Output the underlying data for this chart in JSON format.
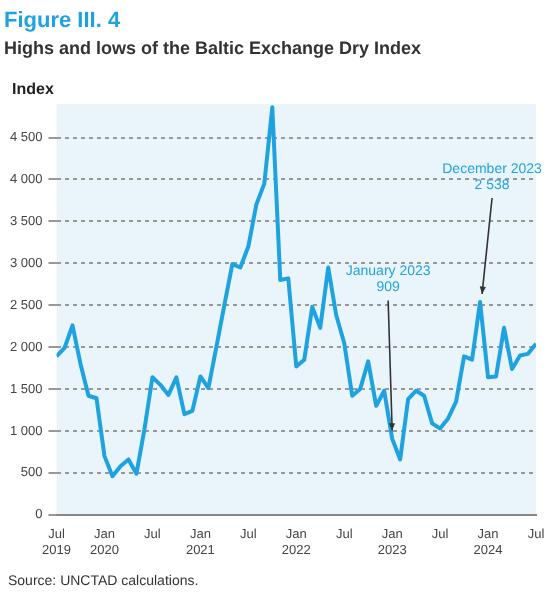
{
  "chart_data": {
    "type": "line",
    "title": "Figure III. 4",
    "subtitle": "Highs and lows of the Baltic Exchange Dry Index",
    "ylabel": "Index",
    "x": [
      "2019-07",
      "2019-08",
      "2019-09",
      "2019-10",
      "2019-11",
      "2019-12",
      "2020-01",
      "2020-02",
      "2020-03",
      "2020-04",
      "2020-05",
      "2020-06",
      "2020-07",
      "2020-08",
      "2020-09",
      "2020-10",
      "2020-11",
      "2020-12",
      "2021-01",
      "2021-02",
      "2021-03",
      "2021-04",
      "2021-05",
      "2021-06",
      "2021-07",
      "2021-08",
      "2021-09",
      "2021-10",
      "2021-11",
      "2021-12",
      "2022-01",
      "2022-02",
      "2022-03",
      "2022-04",
      "2022-05",
      "2022-06",
      "2022-07",
      "2022-08",
      "2022-09",
      "2022-10",
      "2022-11",
      "2022-12",
      "2023-01",
      "2023-02",
      "2023-03",
      "2023-04",
      "2023-05",
      "2023-06",
      "2023-07",
      "2023-08",
      "2023-09",
      "2023-10",
      "2023-11",
      "2023-12",
      "2024-01",
      "2024-02",
      "2024-03",
      "2024-04",
      "2024-05",
      "2024-06",
      "2024-07"
    ],
    "series": [
      {
        "color": "#1ea3e0",
        "values": [
          1890,
          1990,
          2260,
          1800,
          1420,
          1390,
          700,
          460,
          580,
          660,
          490,
          1020,
          1640,
          1550,
          1430,
          1640,
          1200,
          1240,
          1650,
          1510,
          2000,
          2500,
          2990,
          2950,
          3200,
          3700,
          3950,
          4860,
          2800,
          2820,
          1770,
          1850,
          2480,
          2230,
          2950,
          2380,
          2050,
          1420,
          1500,
          1830,
          1300,
          1480,
          909,
          660,
          1380,
          1480,
          1420,
          1090,
          1030,
          1150,
          1350,
          1890,
          1850,
          2538,
          1640,
          1650,
          2230,
          1740,
          1900,
          1920,
          2040
        ]
      }
    ],
    "xlim": [
      "2019-07",
      "2024-07"
    ],
    "xticks": [
      {
        "value": "2019-07",
        "label": "Jul\n2019"
      },
      {
        "value": "2020-01",
        "label": "Jan\n2020"
      },
      {
        "value": "2020-07",
        "label": "Jul"
      },
      {
        "value": "2021-01",
        "label": "Jan\n2021"
      },
      {
        "value": "2021-07",
        "label": "Jul"
      },
      {
        "value": "2022-01",
        "label": "Jan\n2022"
      },
      {
        "value": "2022-07",
        "label": "Jul"
      },
      {
        "value": "2023-01",
        "label": "Jan\n2023"
      },
      {
        "value": "2023-07",
        "label": "Jul"
      },
      {
        "value": "2024-01",
        "label": "Jan\n2024"
      },
      {
        "value": "2024-07",
        "label": "Jul"
      }
    ],
    "ylim": [
      0,
      4900
    ],
    "yticks": [
      0,
      500,
      {
        "value": 1000,
        "label": "1 000"
      },
      {
        "value": 1500,
        "label": "1 500"
      },
      {
        "value": 2000,
        "label": "2 000"
      },
      {
        "value": 2500,
        "label": "2 500"
      },
      {
        "value": 3000,
        "label": "3 000"
      },
      {
        "value": 3500,
        "label": "3 500"
      },
      {
        "value": 4000,
        "label": "4 000"
      },
      {
        "value": 4500,
        "label": "4 500"
      }
    ],
    "grid": "y",
    "marker": "none",
    "line_style": "solid",
    "annotations": [
      {
        "text": "January 2023\n909",
        "x": "2023-01",
        "y": 909
      },
      {
        "text": "December 2023\n2 538",
        "x": "2023-12",
        "y": 2538
      },
      "Source: UNCTAD calculations."
    ]
  }
}
